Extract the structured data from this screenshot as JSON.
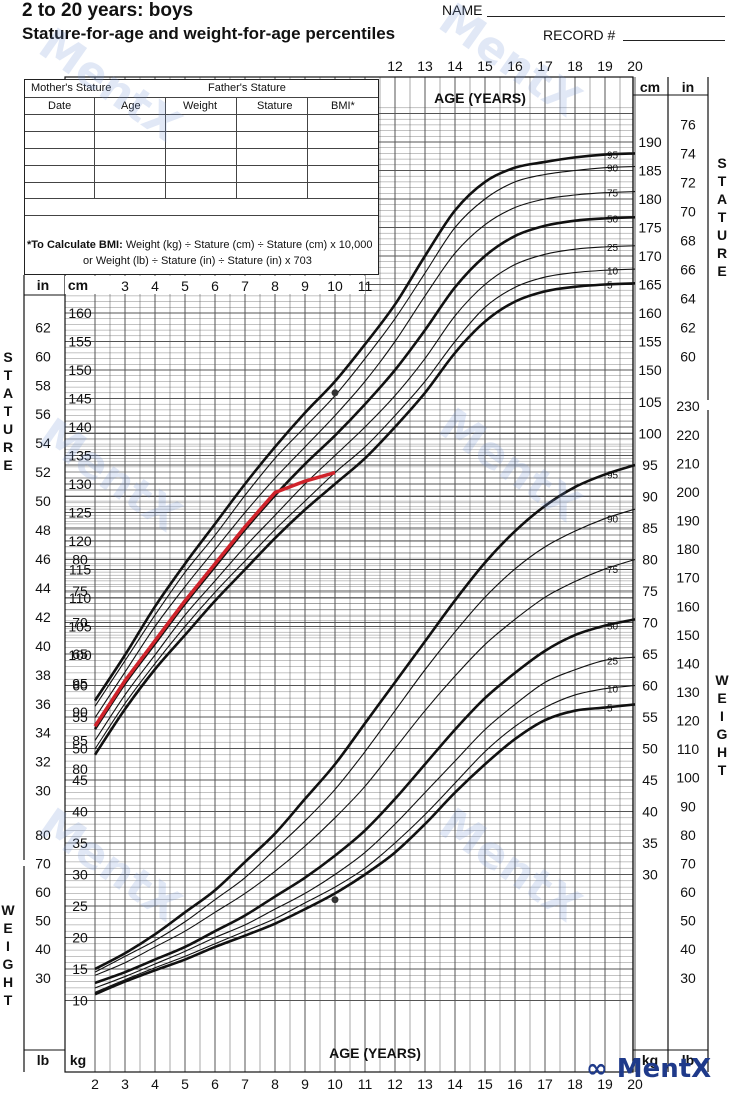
{
  "header": {
    "title_line1": "2 to 20 years: boys",
    "title_line2": "Stature-for-age and weight-for-age percentiles",
    "name_label": "NAME",
    "record_label": "RECORD #"
  },
  "record_table": {
    "mothers_stature": "Mother's Stature",
    "fathers_stature": "Father's Stature",
    "columns": [
      "Date",
      "Age",
      "Weight",
      "Stature",
      "BMI*"
    ],
    "bmi_note_bold": "*To Calculate BMI:",
    "bmi_note_line1": "Weight (kg) ÷ Stature (cm) ÷ Stature (cm) x 10,000",
    "bmi_note_line2": "or Weight (lb) ÷ Stature (in) ÷ Stature (in) x 703"
  },
  "labels": {
    "age_years_top": "AGE (YEARS)",
    "age_years_bottom": "AGE (YEARS)",
    "stature_vertical": "STATURE",
    "weight_vertical": "WEIGHT",
    "cm": "cm",
    "in": "in",
    "kg": "kg",
    "lb": "lb"
  },
  "watermark": "MentX",
  "logo_text": "MentX",
  "colors": {
    "grid": "#333333",
    "curve": "#111111",
    "patient_line": "#d0232b",
    "watermark": "#96aadc",
    "logo": "#1f3a8a"
  },
  "chart_data": [
    {
      "type": "line",
      "title": "Stature-for-age percentiles",
      "xlabel": "AGE (YEARS)",
      "ylabel": "STATURE",
      "x_unit": "years",
      "y_unit": "cm",
      "xlim": [
        2,
        20
      ],
      "ylim": [
        77,
        197
      ],
      "x": [
        2,
        3,
        4,
        5,
        6,
        7,
        8,
        9,
        10,
        11,
        12,
        13,
        14,
        15,
        16,
        17,
        18,
        19,
        20
      ],
      "series": [
        {
          "name": "95",
          "values": [
            92,
            100,
            108.5,
            116,
            123,
            130,
            136.5,
            142.5,
            148,
            154.5,
            161.5,
            170,
            178,
            183,
            185.5,
            186.5,
            187.3,
            187.8,
            188
          ]
        },
        {
          "name": "90",
          "values": [
            91,
            99,
            107,
            114.5,
            121,
            128,
            134.5,
            140,
            145.5,
            152,
            159,
            167,
            175,
            180,
            183,
            184.3,
            185,
            185.5,
            185.7
          ]
        },
        {
          "name": "75",
          "values": [
            89,
            97,
            105,
            112,
            118.5,
            125,
            131,
            136.5,
            142,
            148,
            155,
            163,
            170.5,
            175.5,
            178.5,
            180,
            180.7,
            181.1,
            181.3
          ]
        },
        {
          "name": "50",
          "values": [
            87,
            95,
            102,
            109,
            115.5,
            122,
            128,
            133.5,
            138.5,
            144,
            150,
            157,
            164.5,
            170,
            173.5,
            175.3,
            176.2,
            176.6,
            176.8
          ]
        },
        {
          "name": "25",
          "values": [
            85,
            93,
            100,
            107,
            113,
            119,
            124.5,
            130,
            135,
            140,
            145.5,
            152,
            159.5,
            165,
            168.5,
            170.3,
            171.2,
            171.6,
            171.8
          ]
        },
        {
          "name": "10",
          "values": [
            83.5,
            91.5,
            98.5,
            105,
            111,
            116.5,
            122,
            127,
            132,
            136.5,
            142,
            148,
            155,
            161,
            164.5,
            166.3,
            167.1,
            167.5,
            167.7
          ]
        },
        {
          "name": "5",
          "values": [
            82.5,
            90.5,
            97.5,
            103.5,
            109.5,
            115,
            120.5,
            125.5,
            130,
            134.5,
            140,
            146,
            153,
            158.5,
            162,
            163.8,
            164.6,
            165,
            165.2
          ]
        }
      ],
      "patient_stature": {
        "x": [
          2,
          3,
          4,
          5,
          6,
          7,
          8,
          9,
          10
        ],
        "values": [
          87.5,
          95.5,
          102.5,
          109.5,
          116,
          122.5,
          128.5,
          130.5,
          132
        ]
      },
      "marked_points": [
        {
          "x": 10,
          "y": 146
        }
      ]
    },
    {
      "type": "line",
      "title": "Weight-for-age percentiles",
      "xlabel": "AGE (YEARS)",
      "ylabel": "WEIGHT",
      "x_unit": "years",
      "y_unit": "kg",
      "xlim": [
        2,
        20
      ],
      "ylim": [
        10,
        105
      ],
      "x": [
        2,
        3,
        4,
        5,
        6,
        7,
        8,
        9,
        10,
        11,
        12,
        13,
        14,
        15,
        16,
        17,
        18,
        19,
        20
      ],
      "series": [
        {
          "name": "95",
          "values": [
            15,
            17.5,
            20.5,
            24,
            27.5,
            32,
            36.5,
            42,
            47.5,
            54,
            60.5,
            67,
            73.5,
            79.5,
            84.5,
            88.5,
            91.5,
            93.5,
            95
          ]
        },
        {
          "name": "90",
          "values": [
            14.5,
            17,
            19.5,
            22.5,
            26,
            29.5,
            34,
            38.5,
            43.5,
            49.5,
            56,
            62.5,
            68.5,
            74,
            78.5,
            82,
            84.5,
            86.5,
            88
          ]
        },
        {
          "name": "75",
          "values": [
            14,
            16,
            18.5,
            21,
            24,
            27,
            30.5,
            34.5,
            39,
            44,
            50,
            56,
            61.5,
            66.5,
            70.5,
            74,
            76.5,
            78.5,
            80
          ]
        },
        {
          "name": "50",
          "values": [
            12.8,
            14.5,
            16.5,
            18.5,
            21,
            23.5,
            26.5,
            29.5,
            33,
            37,
            42,
            47.5,
            53,
            58,
            62,
            65.5,
            68,
            69.5,
            70.5
          ]
        },
        {
          "name": "25",
          "values": [
            12,
            13.8,
            15.8,
            17.8,
            20,
            22,
            24.5,
            27,
            30,
            33.5,
            38,
            43,
            48,
            53,
            57,
            60.5,
            62.5,
            64,
            64.5
          ]
        },
        {
          "name": "10",
          "values": [
            11.3,
            13.3,
            15.2,
            17,
            19,
            21,
            23,
            25.5,
            28,
            31,
            35,
            39.5,
            44.5,
            49.5,
            53.5,
            56.5,
            58.5,
            59.5,
            60
          ]
        },
        {
          "name": "5",
          "values": [
            11,
            13,
            14.8,
            16.5,
            18.5,
            20.3,
            22.2,
            24.5,
            27,
            30,
            33.5,
            38,
            43,
            47.5,
            51.5,
            54.5,
            56,
            56.5,
            57
          ]
        }
      ],
      "marked_points": [
        {
          "x": 10,
          "y": 26
        }
      ]
    }
  ]
}
